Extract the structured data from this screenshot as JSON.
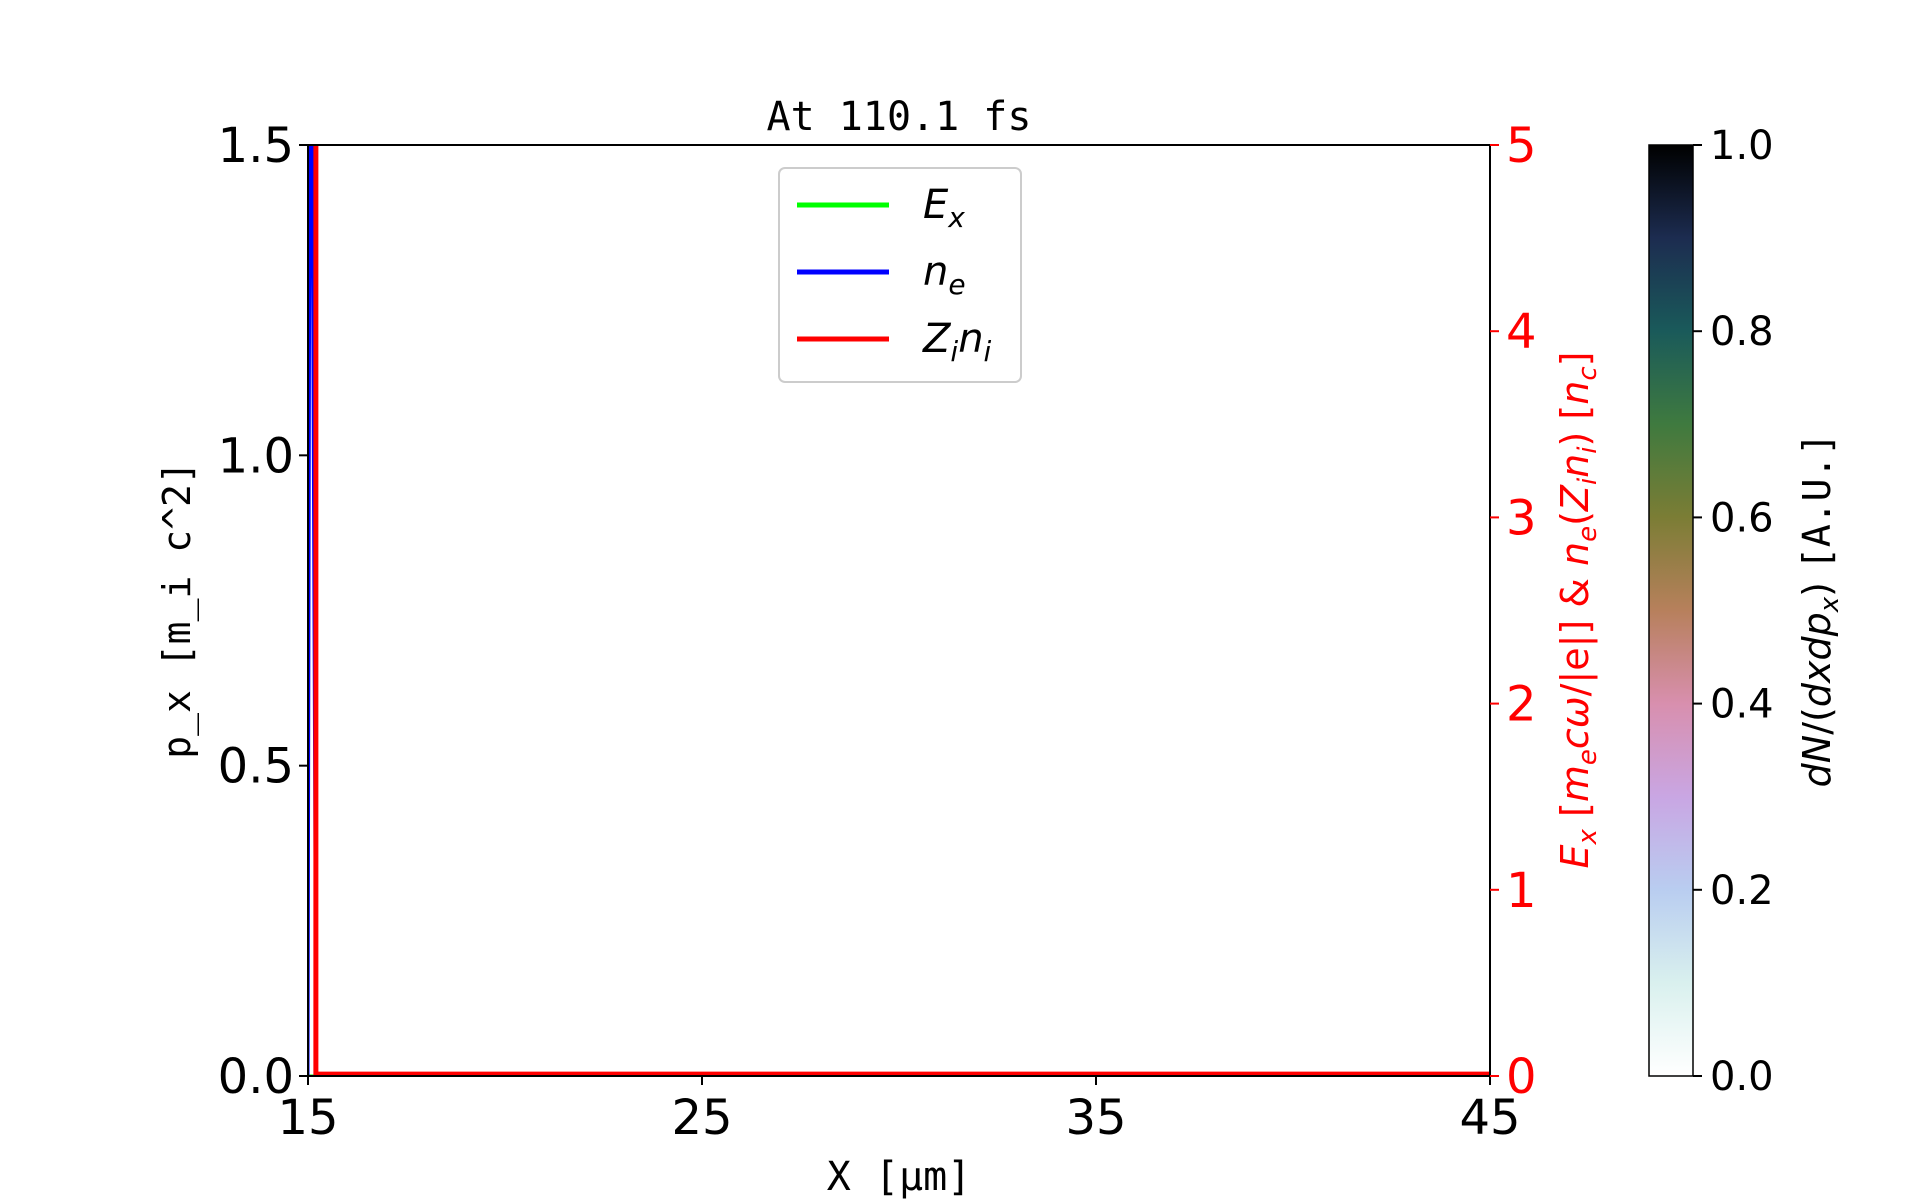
{
  "chart_data": {
    "type": "line",
    "title": "At 110.1 fs",
    "xlabel": "X [μm]",
    "ylabel_left": "p_x [m_i c^2]",
    "ylabel_right": "E_x [m_e cω/|e|] & n_e(Z_i n_i) [n_c]",
    "xlim": [
      15,
      45
    ],
    "ylim_left": [
      0,
      1.5
    ],
    "ylim_right": [
      0,
      5
    ],
    "xticks": [
      15,
      25,
      35,
      45
    ],
    "xtick_labels": [
      "15",
      "25",
      "35",
      "45"
    ],
    "yticks_left": [
      0,
      0.5,
      1.0,
      1.5
    ],
    "ytick_labels_left": [
      "0.0",
      "0.5",
      "1.0",
      "1.5"
    ],
    "yticks_right": [
      0,
      1,
      2,
      3,
      4,
      5
    ],
    "ytick_labels_right": [
      "0",
      "1",
      "2",
      "3",
      "4",
      "5"
    ],
    "right_axis_color": "#ff0000",
    "grid": false,
    "legend_placement": "upper-center",
    "series": [
      {
        "name": "E_x",
        "color": "#00ff00",
        "axis": "right",
        "x": [
          15,
          45
        ],
        "values": [
          0,
          0
        ]
      },
      {
        "name": "n_e",
        "color": "#0000ff",
        "axis": "right",
        "x": [
          15,
          15.05,
          15.1,
          15.2,
          45
        ],
        "values": [
          0,
          5.2,
          5.2,
          0.01,
          0.01
        ]
      },
      {
        "name": "Z_i n_i",
        "color": "#ff0000",
        "axis": "right",
        "x": [
          15.1,
          15.1,
          15.2,
          15.2,
          45
        ],
        "values": [
          5.2,
          5.2,
          5.2,
          0.01,
          0.01
        ]
      }
    ],
    "colorbar": {
      "label": "dN/(dxdp_x) [A.U.]",
      "range": [
        0,
        1
      ],
      "ticks": [
        0,
        0.2,
        0.4,
        0.6,
        0.8,
        1.0
      ],
      "tick_labels": [
        "0.0",
        "0.2",
        "0.4",
        "0.6",
        "0.8",
        "1.0"
      ],
      "colormap": "cubehelix_r"
    }
  }
}
